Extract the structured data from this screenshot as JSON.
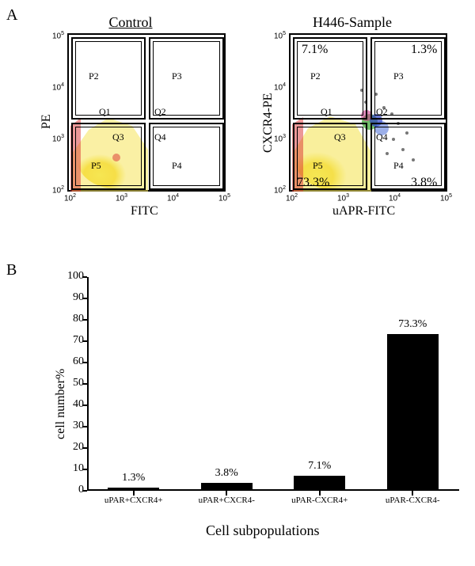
{
  "labels": {
    "A": "A",
    "B": "B"
  },
  "facs": {
    "control": {
      "title": "Control",
      "xlabel": "FITC",
      "ylabel": "PE",
      "quadrants": {
        "P2": "P2",
        "P3": "P3",
        "P4": "P4",
        "P5": "P5",
        "Q1": "Q1",
        "Q2": "Q2",
        "Q3": "Q3",
        "Q4": "Q4"
      },
      "ticks": {
        "e2": "10",
        "e3": "10",
        "e4": "10",
        "e5": "10",
        "s2": "2",
        "s3": "3",
        "s4": "4",
        "s5": "5"
      }
    },
    "sample": {
      "title": "H446-Sample",
      "xlabel": "uAPR-FITC",
      "ylabel": "CXCR4-PE",
      "quadrants": {
        "P2": "P2",
        "P3": "P3",
        "P4": "P4",
        "P5": "P5",
        "Q1": "Q1",
        "Q2": "Q2",
        "Q3": "Q3",
        "Q4": "Q4"
      },
      "pct": {
        "ul": "7.1%",
        "ur": "1.3%",
        "ll": "73.3%",
        "lr": "3.8%"
      },
      "ticks": {
        "e2": "10",
        "e3": "10",
        "e4": "10",
        "e5": "10",
        "s2": "2",
        "s3": "3",
        "s4": "4",
        "s5": "5"
      }
    }
  },
  "chart": {
    "ylabel": "cell number%",
    "xlabel": "Cell subpopulations",
    "ylim_max": 100,
    "yticks": [
      0,
      10,
      20,
      30,
      40,
      50,
      60,
      70,
      80,
      90,
      100
    ],
    "bar_color": "#000000",
    "background": "#ffffff",
    "bars": [
      {
        "cat": "uPAR+CXCR4+",
        "value": 1.3,
        "pct": "1.3%"
      },
      {
        "cat": "uPAR+CXCR4-",
        "value": 3.8,
        "pct": "3.8%"
      },
      {
        "cat": "uPAR-CXCR4+",
        "value": 7.1,
        "pct": "7.1%"
      },
      {
        "cat": "uPAR-CXCR4-",
        "value": 73.3,
        "pct": "73.3%"
      }
    ]
  }
}
